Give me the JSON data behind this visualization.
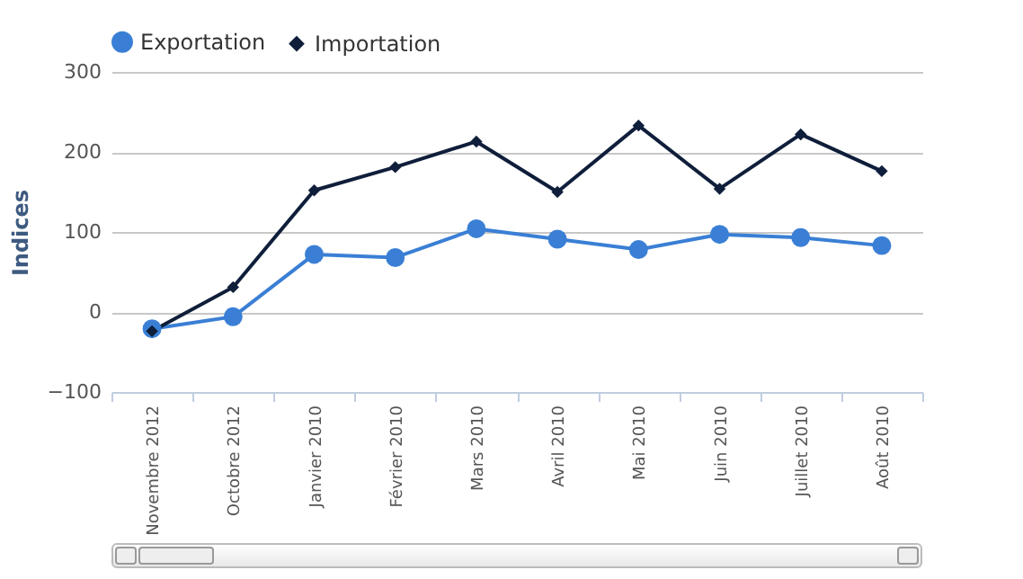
{
  "chart_data": {
    "type": "line",
    "ylabel": "Indices",
    "categories": [
      "Novembre 2012",
      "Octobre 2012",
      "Janvier 2010",
      "Février 2010",
      "Mars 2010",
      "Avril 2010",
      "Mai 2010",
      "Juin 2010",
      "Juillet 2010",
      "Août 2010"
    ],
    "series": [
      {
        "name": "Exportation",
        "color": "#3a7fd5",
        "marker": "circle",
        "line_style": "solid",
        "values": [
          -21,
          -6,
          72,
          68,
          104,
          91,
          78,
          97,
          93,
          83
        ]
      },
      {
        "name": "Importation",
        "color": "#0f1e3a",
        "marker": "diamond",
        "line_style": "solid",
        "values": [
          -24,
          31,
          152,
          181,
          213,
          150,
          233,
          154,
          222,
          176
        ]
      }
    ],
    "ylim": [
      -100,
      300
    ],
    "yticks": [
      -100,
      0,
      100,
      200,
      300
    ],
    "grid": "y",
    "legend": "top"
  }
}
